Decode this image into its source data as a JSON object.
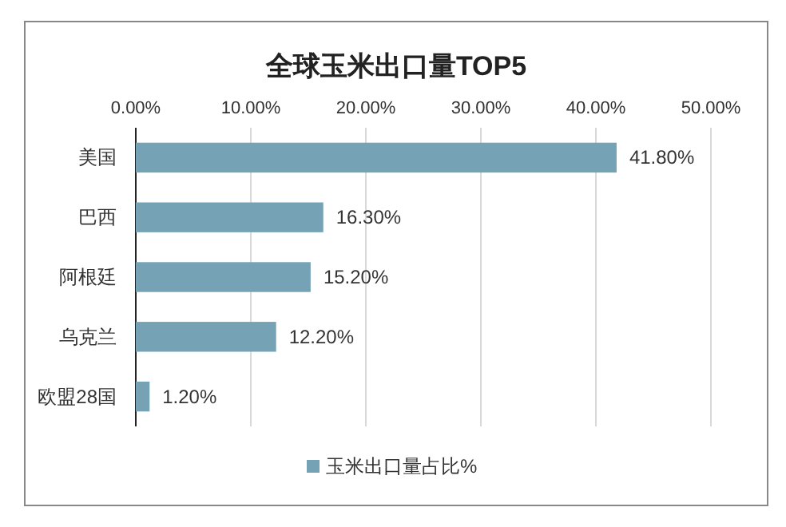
{
  "chart_data": {
    "type": "bar",
    "orientation": "horizontal",
    "title": "全球玉米出口量TOP5",
    "categories": [
      "美国",
      "巴西",
      "阿根廷",
      "乌克兰",
      "欧盟28国"
    ],
    "series": [
      {
        "name": "玉米出口量占比%",
        "color": "#75a3b5",
        "values": [
          41.8,
          16.3,
          15.2,
          12.2,
          1.2
        ]
      }
    ],
    "value_labels": [
      "41.80%",
      "16.30%",
      "15.20%",
      "12.20%",
      "1.20%"
    ],
    "xlim": [
      0,
      50
    ],
    "xticks": [
      {
        "value": 0,
        "label": "0.00%"
      },
      {
        "value": 10,
        "label": "10.00%"
      },
      {
        "value": 20,
        "label": "20.00%"
      },
      {
        "value": 30,
        "label": "30.00%"
      },
      {
        "value": 40,
        "label": "40.00%"
      },
      {
        "value": 50,
        "label": "50.00%"
      }
    ],
    "grid": "x",
    "legend": "bottom"
  }
}
